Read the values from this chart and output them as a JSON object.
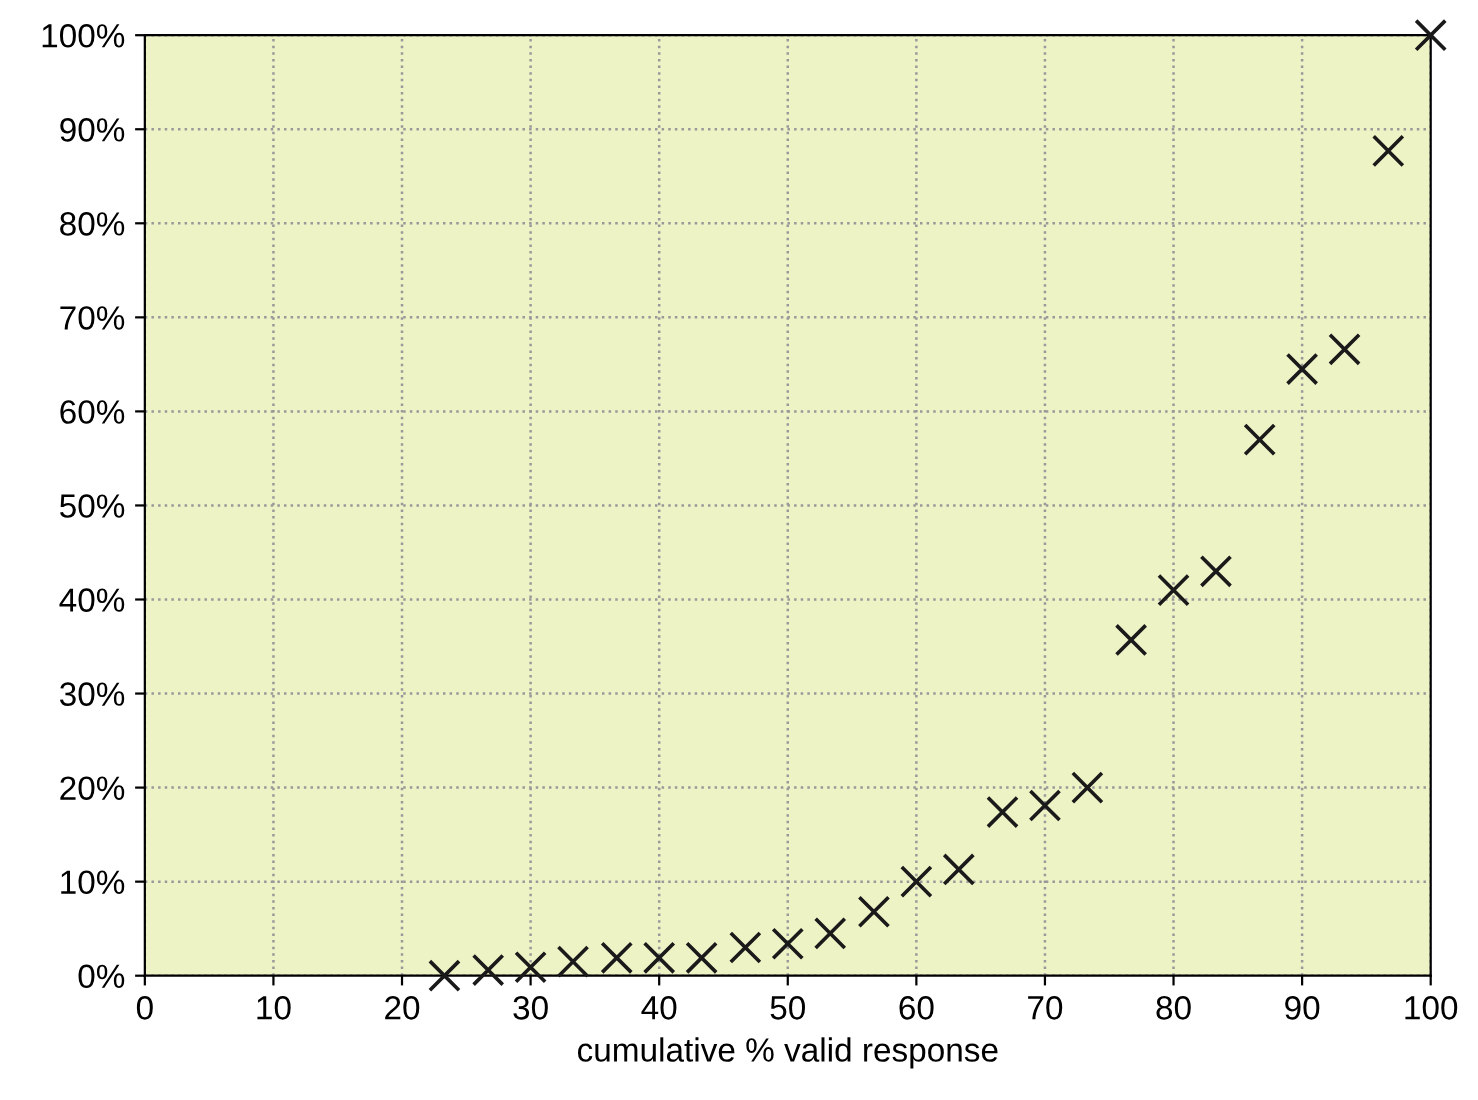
{
  "chart_data": {
    "type": "scatter",
    "xlabel": "cumulative % valid response",
    "x": [
      23.3,
      26.7,
      30,
      33.3,
      36.7,
      40,
      43.3,
      46.7,
      50,
      53.3,
      56.7,
      60,
      63.3,
      66.7,
      70,
      73.3,
      76.7,
      80,
      83.3,
      86.7,
      90,
      93.3,
      96.7,
      100
    ],
    "series": [
      {
        "color": "#1a1a1a",
        "values": [
          0,
          0.6,
          0.9,
          1.5,
          1.9,
          1.9,
          1.9,
          3,
          3.4,
          4.5,
          6.8,
          10,
          11.3,
          17.4,
          18.1,
          20,
          35.7,
          41,
          43,
          57,
          64.5,
          66.6,
          87.7,
          100
        ]
      }
    ],
    "xlim": [
      0,
      100
    ],
    "xticks": [
      0,
      10,
      20,
      30,
      40,
      50,
      60,
      70,
      80,
      90,
      100
    ],
    "ylim": [
      0,
      100
    ],
    "yticks": [
      {
        "value": 0,
        "label": "0%"
      },
      {
        "value": 10,
        "label": "10%"
      },
      {
        "value": 20,
        "label": "20%"
      },
      {
        "value": 30,
        "label": "30%"
      },
      {
        "value": 40,
        "label": "40%"
      },
      {
        "value": 50,
        "label": "50%"
      },
      {
        "value": 60,
        "label": "60%"
      },
      {
        "value": 70,
        "label": "70%"
      },
      {
        "value": 80,
        "label": "80%"
      },
      {
        "value": 90,
        "label": "90%"
      },
      {
        "value": 100,
        "label": "100%"
      }
    ],
    "grid": true,
    "marker": "cross",
    "legend": false
  }
}
